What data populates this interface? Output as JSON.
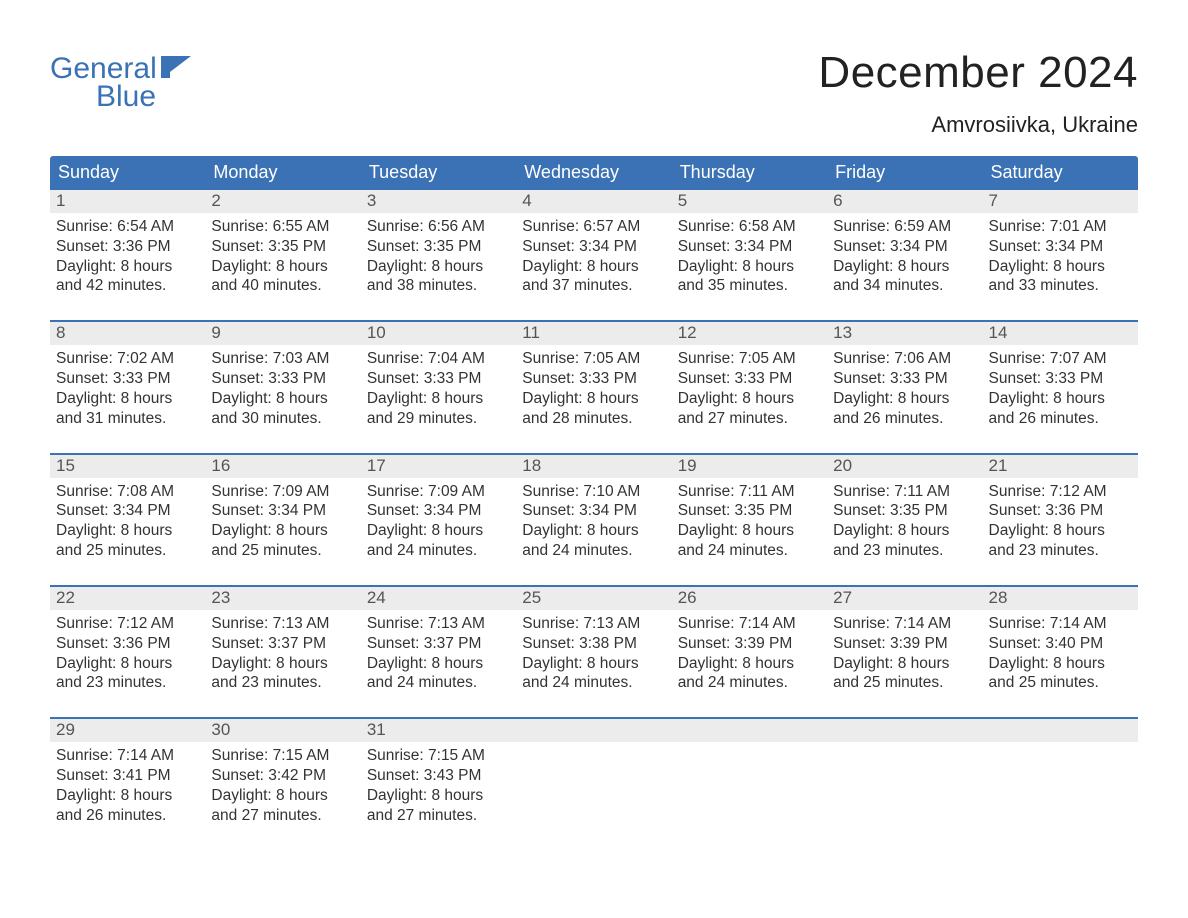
{
  "brand": {
    "line1": "General",
    "line2": "Blue",
    "logo_color": "#3a72b5"
  },
  "title": "December 2024",
  "location": "Amvrosiivka, Ukraine",
  "colors": {
    "header_bg": "#3a72b5",
    "header_text": "#ffffff",
    "daynum_bg": "#ececec",
    "week_border": "#3a72b5",
    "body_text": "#333333",
    "title_text": "#222222",
    "page_bg": "#ffffff"
  },
  "fonts": {
    "title_size_pt": 33,
    "location_size_pt": 16,
    "dayhead_size_pt": 13,
    "daynum_size_pt": 13,
    "body_size_pt": 11.5,
    "family": "Arial"
  },
  "day_headers": [
    "Sunday",
    "Monday",
    "Tuesday",
    "Wednesday",
    "Thursday",
    "Friday",
    "Saturday"
  ],
  "weeks": [
    [
      {
        "n": "1",
        "sunrise": "Sunrise: 6:54 AM",
        "sunset": "Sunset: 3:36 PM",
        "d1": "Daylight: 8 hours",
        "d2": "and 42 minutes."
      },
      {
        "n": "2",
        "sunrise": "Sunrise: 6:55 AM",
        "sunset": "Sunset: 3:35 PM",
        "d1": "Daylight: 8 hours",
        "d2": "and 40 minutes."
      },
      {
        "n": "3",
        "sunrise": "Sunrise: 6:56 AM",
        "sunset": "Sunset: 3:35 PM",
        "d1": "Daylight: 8 hours",
        "d2": "and 38 minutes."
      },
      {
        "n": "4",
        "sunrise": "Sunrise: 6:57 AM",
        "sunset": "Sunset: 3:34 PM",
        "d1": "Daylight: 8 hours",
        "d2": "and 37 minutes."
      },
      {
        "n": "5",
        "sunrise": "Sunrise: 6:58 AM",
        "sunset": "Sunset: 3:34 PM",
        "d1": "Daylight: 8 hours",
        "d2": "and 35 minutes."
      },
      {
        "n": "6",
        "sunrise": "Sunrise: 6:59 AM",
        "sunset": "Sunset: 3:34 PM",
        "d1": "Daylight: 8 hours",
        "d2": "and 34 minutes."
      },
      {
        "n": "7",
        "sunrise": "Sunrise: 7:01 AM",
        "sunset": "Sunset: 3:34 PM",
        "d1": "Daylight: 8 hours",
        "d2": "and 33 minutes."
      }
    ],
    [
      {
        "n": "8",
        "sunrise": "Sunrise: 7:02 AM",
        "sunset": "Sunset: 3:33 PM",
        "d1": "Daylight: 8 hours",
        "d2": "and 31 minutes."
      },
      {
        "n": "9",
        "sunrise": "Sunrise: 7:03 AM",
        "sunset": "Sunset: 3:33 PM",
        "d1": "Daylight: 8 hours",
        "d2": "and 30 minutes."
      },
      {
        "n": "10",
        "sunrise": "Sunrise: 7:04 AM",
        "sunset": "Sunset: 3:33 PM",
        "d1": "Daylight: 8 hours",
        "d2": "and 29 minutes."
      },
      {
        "n": "11",
        "sunrise": "Sunrise: 7:05 AM",
        "sunset": "Sunset: 3:33 PM",
        "d1": "Daylight: 8 hours",
        "d2": "and 28 minutes."
      },
      {
        "n": "12",
        "sunrise": "Sunrise: 7:05 AM",
        "sunset": "Sunset: 3:33 PM",
        "d1": "Daylight: 8 hours",
        "d2": "and 27 minutes."
      },
      {
        "n": "13",
        "sunrise": "Sunrise: 7:06 AM",
        "sunset": "Sunset: 3:33 PM",
        "d1": "Daylight: 8 hours",
        "d2": "and 26 minutes."
      },
      {
        "n": "14",
        "sunrise": "Sunrise: 7:07 AM",
        "sunset": "Sunset: 3:33 PM",
        "d1": "Daylight: 8 hours",
        "d2": "and 26 minutes."
      }
    ],
    [
      {
        "n": "15",
        "sunrise": "Sunrise: 7:08 AM",
        "sunset": "Sunset: 3:34 PM",
        "d1": "Daylight: 8 hours",
        "d2": "and 25 minutes."
      },
      {
        "n": "16",
        "sunrise": "Sunrise: 7:09 AM",
        "sunset": "Sunset: 3:34 PM",
        "d1": "Daylight: 8 hours",
        "d2": "and 25 minutes."
      },
      {
        "n": "17",
        "sunrise": "Sunrise: 7:09 AM",
        "sunset": "Sunset: 3:34 PM",
        "d1": "Daylight: 8 hours",
        "d2": "and 24 minutes."
      },
      {
        "n": "18",
        "sunrise": "Sunrise: 7:10 AM",
        "sunset": "Sunset: 3:34 PM",
        "d1": "Daylight: 8 hours",
        "d2": "and 24 minutes."
      },
      {
        "n": "19",
        "sunrise": "Sunrise: 7:11 AM",
        "sunset": "Sunset: 3:35 PM",
        "d1": "Daylight: 8 hours",
        "d2": "and 24 minutes."
      },
      {
        "n": "20",
        "sunrise": "Sunrise: 7:11 AM",
        "sunset": "Sunset: 3:35 PM",
        "d1": "Daylight: 8 hours",
        "d2": "and 23 minutes."
      },
      {
        "n": "21",
        "sunrise": "Sunrise: 7:12 AM",
        "sunset": "Sunset: 3:36 PM",
        "d1": "Daylight: 8 hours",
        "d2": "and 23 minutes."
      }
    ],
    [
      {
        "n": "22",
        "sunrise": "Sunrise: 7:12 AM",
        "sunset": "Sunset: 3:36 PM",
        "d1": "Daylight: 8 hours",
        "d2": "and 23 minutes."
      },
      {
        "n": "23",
        "sunrise": "Sunrise: 7:13 AM",
        "sunset": "Sunset: 3:37 PM",
        "d1": "Daylight: 8 hours",
        "d2": "and 23 minutes."
      },
      {
        "n": "24",
        "sunrise": "Sunrise: 7:13 AM",
        "sunset": "Sunset: 3:37 PM",
        "d1": "Daylight: 8 hours",
        "d2": "and 24 minutes."
      },
      {
        "n": "25",
        "sunrise": "Sunrise: 7:13 AM",
        "sunset": "Sunset: 3:38 PM",
        "d1": "Daylight: 8 hours",
        "d2": "and 24 minutes."
      },
      {
        "n": "26",
        "sunrise": "Sunrise: 7:14 AM",
        "sunset": "Sunset: 3:39 PM",
        "d1": "Daylight: 8 hours",
        "d2": "and 24 minutes."
      },
      {
        "n": "27",
        "sunrise": "Sunrise: 7:14 AM",
        "sunset": "Sunset: 3:39 PM",
        "d1": "Daylight: 8 hours",
        "d2": "and 25 minutes."
      },
      {
        "n": "28",
        "sunrise": "Sunrise: 7:14 AM",
        "sunset": "Sunset: 3:40 PM",
        "d1": "Daylight: 8 hours",
        "d2": "and 25 minutes."
      }
    ],
    [
      {
        "n": "29",
        "sunrise": "Sunrise: 7:14 AM",
        "sunset": "Sunset: 3:41 PM",
        "d1": "Daylight: 8 hours",
        "d2": "and 26 minutes."
      },
      {
        "n": "30",
        "sunrise": "Sunrise: 7:15 AM",
        "sunset": "Sunset: 3:42 PM",
        "d1": "Daylight: 8 hours",
        "d2": "and 27 minutes."
      },
      {
        "n": "31",
        "sunrise": "Sunrise: 7:15 AM",
        "sunset": "Sunset: 3:43 PM",
        "d1": "Daylight: 8 hours",
        "d2": "and 27 minutes."
      },
      {
        "n": "",
        "sunrise": "",
        "sunset": "",
        "d1": "",
        "d2": ""
      },
      {
        "n": "",
        "sunrise": "",
        "sunset": "",
        "d1": "",
        "d2": ""
      },
      {
        "n": "",
        "sunrise": "",
        "sunset": "",
        "d1": "",
        "d2": ""
      },
      {
        "n": "",
        "sunrise": "",
        "sunset": "",
        "d1": "",
        "d2": ""
      }
    ]
  ]
}
